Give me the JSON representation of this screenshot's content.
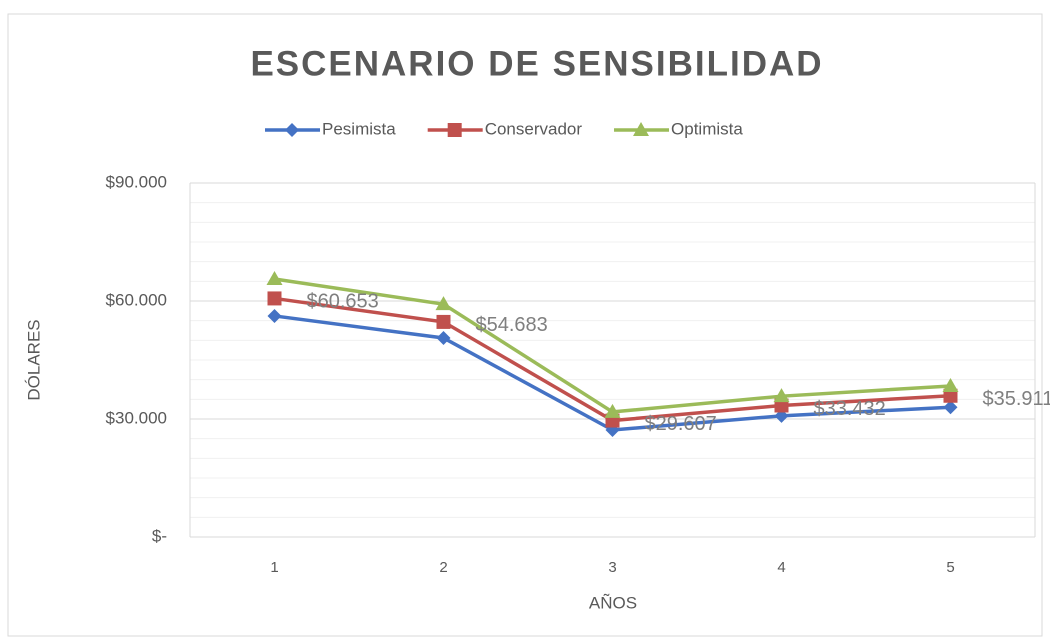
{
  "chart_data": {
    "type": "line",
    "title": "ESCENARIO DE SENSIBILIDAD",
    "x_label": "AÑOS",
    "y_label": "DÓLARES",
    "categories": [
      "1",
      "2",
      "3",
      "4",
      "5"
    ],
    "series": [
      {
        "name": "Pesimista",
        "color": "#4472c4",
        "marker": "diamond",
        "values": [
          56200,
          50600,
          27200,
          30800,
          33000
        ]
      },
      {
        "name": "Conservador",
        "color": "#c0504d",
        "marker": "square",
        "values": [
          60653,
          54683,
          29607,
          33432,
          35911
        ],
        "value_labels": [
          "$60.653",
          "$54.683",
          "$29.607",
          "$33.432",
          "$35.911"
        ]
      },
      {
        "name": "Optimista",
        "color": "#9bbb59",
        "marker": "triangle",
        "values": [
          65600,
          59200,
          31800,
          35800,
          38400
        ]
      }
    ],
    "ylim": [
      0,
      90000
    ],
    "yticks": [
      {
        "value": 0,
        "label": "$-"
      },
      {
        "value": 30000,
        "label": "$30.000"
      },
      {
        "value": 60000,
        "label": "$60.000"
      },
      {
        "value": 90000,
        "label": "$90.000"
      }
    ],
    "minor_yticks": [
      5000,
      10000,
      15000,
      20000,
      25000,
      35000,
      40000,
      45000,
      50000,
      55000,
      65000,
      70000,
      75000,
      80000,
      85000
    ],
    "grid": true,
    "legend": "top"
  }
}
